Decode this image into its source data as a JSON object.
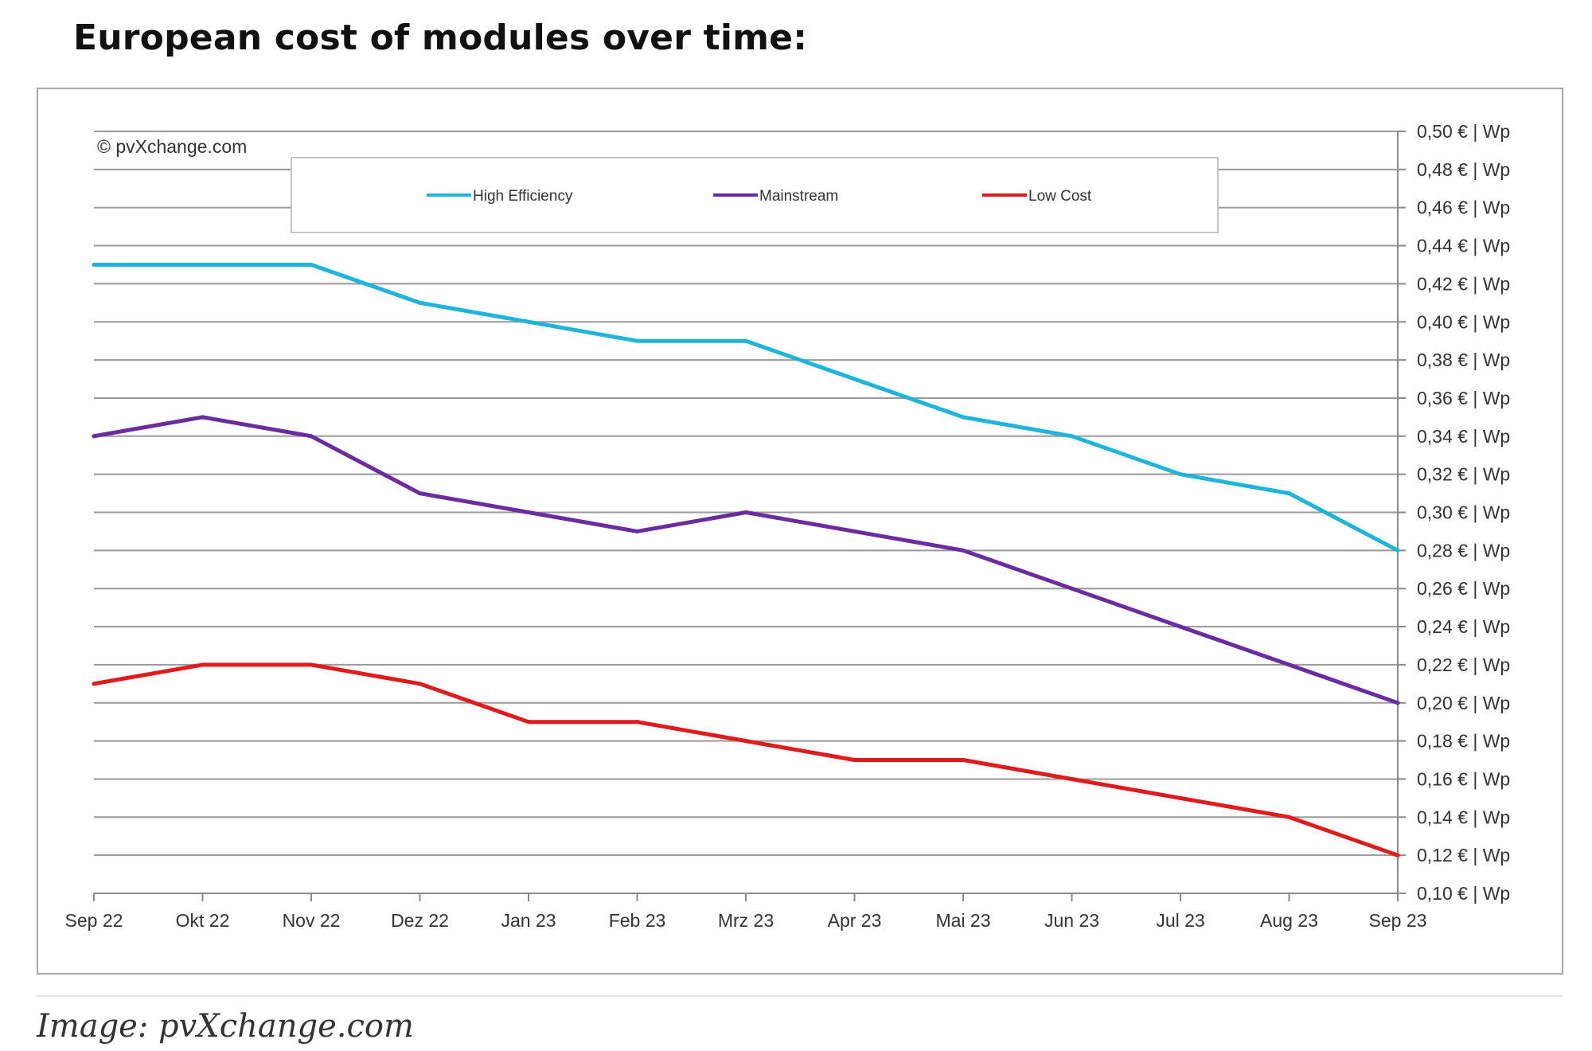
{
  "header": {
    "title": "European cost of modules over time:"
  },
  "footer": {
    "caption": "Image: pvXchange.com"
  },
  "chart_data": {
    "type": "line",
    "title": "",
    "credit": "© pvXchange.com",
    "xlabel": "",
    "ylabel": "",
    "categories": [
      "Sep 22",
      "Okt 22",
      "Nov 22",
      "Dez 22",
      "Jan 23",
      "Feb 23",
      "Mrz 23",
      "Apr 23",
      "Mai 23",
      "Jun 23",
      "Jul 23",
      "Aug 23",
      "Sep 23"
    ],
    "ylim": [
      0.1,
      0.5
    ],
    "y_ticks": [
      0.1,
      0.12,
      0.14,
      0.16,
      0.18,
      0.2,
      0.22,
      0.24,
      0.26,
      0.28,
      0.3,
      0.32,
      0.34,
      0.36,
      0.38,
      0.4,
      0.42,
      0.44,
      0.46,
      0.48,
      0.5
    ],
    "y_tick_labels": [
      "0,10 € | Wp",
      "0,12 € | Wp",
      "0,14 € | Wp",
      "0,16 € | Wp",
      "0,18 € | Wp",
      "0,20 € | Wp",
      "0,22 € | Wp",
      "0,24 € | Wp",
      "0,26 € | Wp",
      "0,28 € | Wp",
      "0,30 € | Wp",
      "0,32 € | Wp",
      "0,34 € | Wp",
      "0,36 € | Wp",
      "0,38 € | Wp",
      "0,40 € | Wp",
      "0,42 € | Wp",
      "0,44 € | Wp",
      "0,46 € | Wp",
      "0,48 € | Wp",
      "0,50 € | Wp"
    ],
    "y_axis_side": "right",
    "grid": true,
    "legend": "top-center",
    "series": [
      {
        "name": "High Efficiency",
        "color": "#1fb4da",
        "values": [
          0.43,
          0.43,
          0.43,
          0.41,
          0.4,
          0.39,
          0.39,
          0.37,
          0.35,
          0.34,
          0.32,
          0.31,
          0.28
        ]
      },
      {
        "name": "Mainstream",
        "color": "#6a2c9e",
        "values": [
          0.34,
          0.35,
          0.34,
          0.31,
          0.3,
          0.29,
          0.3,
          0.29,
          0.28,
          0.26,
          0.24,
          0.22,
          0.2
        ]
      },
      {
        "name": "Low Cost",
        "color": "#e01b1b",
        "values": [
          0.21,
          0.22,
          0.22,
          0.21,
          0.19,
          0.19,
          0.18,
          0.17,
          0.17,
          0.16,
          0.15,
          0.14,
          0.12
        ]
      }
    ]
  }
}
